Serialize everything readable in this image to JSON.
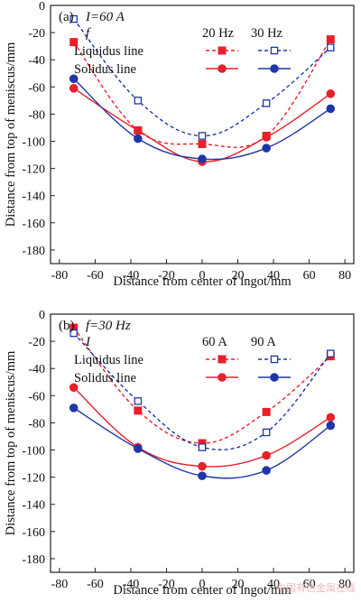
{
  "chart_data": [
    {
      "type": "line",
      "panel_label": "(a)",
      "condition_line1": "I=60 A",
      "condition_line2": "f",
      "xlabel": "Distance from center of ingot/mm",
      "ylabel": "Distance from top of meniscus/mm",
      "xlim": [
        -85,
        85
      ],
      "ylim": [
        -190,
        0
      ],
      "xticks": [
        -80,
        -60,
        -40,
        -20,
        0,
        20,
        40,
        60,
        80
      ],
      "yticks": [
        0,
        -20,
        -40,
        -60,
        -80,
        -100,
        -120,
        -140,
        -160,
        -180
      ],
      "legend_headers": [
        "20 Hz",
        "30 Hz"
      ],
      "legend_rows": [
        "Liquidus line",
        "Solidus line"
      ],
      "x": [
        -72,
        -36,
        0,
        36,
        72
      ],
      "series": [
        {
          "name": "Liquidus line 20 Hz",
          "line": "dashed",
          "marker": "square-filled",
          "color": "#e8202a",
          "values": [
            -27,
            -92,
            -102,
            -96,
            -25
          ]
        },
        {
          "name": "Liquidus line 30 Hz",
          "line": "dashed",
          "marker": "square-open",
          "color": "#1f36a8",
          "values": [
            -10,
            -70,
            -96,
            -72,
            -31
          ]
        },
        {
          "name": "Solidus line 20 Hz",
          "line": "solid",
          "marker": "circle-filled",
          "color": "#e8202a",
          "values": [
            -61,
            -92,
            -115,
            -97,
            -65
          ]
        },
        {
          "name": "Solidus line 30 Hz",
          "line": "solid",
          "marker": "circle-filled",
          "color": "#1f36a8",
          "values": [
            -54,
            -98,
            -113,
            -105,
            -76
          ]
        }
      ]
    },
    {
      "type": "line",
      "panel_label": "(b)",
      "condition_line1": "f=30 Hz",
      "condition_line2": "I",
      "xlabel": "Distance from center of ingot/mm",
      "ylabel": "Distance from top of meniscus/mm",
      "xlim": [
        -85,
        85
      ],
      "ylim": [
        -190,
        0
      ],
      "xticks": [
        -80,
        -60,
        -40,
        -20,
        0,
        20,
        40,
        60,
        80
      ],
      "yticks": [
        0,
        -20,
        -40,
        -60,
        -80,
        -100,
        -120,
        -140,
        -160,
        -180
      ],
      "legend_headers": [
        "60 A",
        "90 A"
      ],
      "legend_rows": [
        "Liquidus line",
        "Solidus line"
      ],
      "x": [
        -72,
        -36,
        0,
        36,
        72
      ],
      "series": [
        {
          "name": "Liquidus line 60 A",
          "line": "dashed",
          "marker": "square-filled",
          "color": "#e8202a",
          "values": [
            -10,
            -71,
            -95,
            -72,
            -31
          ]
        },
        {
          "name": "Liquidus line 90 A",
          "line": "dashed",
          "marker": "square-open",
          "color": "#1f36a8",
          "values": [
            -14,
            -64,
            -98,
            -87,
            -29
          ]
        },
        {
          "name": "Solidus line 60 A",
          "line": "solid",
          "marker": "circle-filled",
          "color": "#e8202a",
          "values": [
            -54,
            -98,
            -112,
            -104,
            -76
          ]
        },
        {
          "name": "Solidus line 90 A",
          "line": "solid",
          "marker": "circle-filled",
          "color": "#1f36a8",
          "values": [
            -69,
            -99,
            -119,
            -115,
            -82
          ]
        }
      ]
    }
  ],
  "watermark": "中国有色金属在线"
}
